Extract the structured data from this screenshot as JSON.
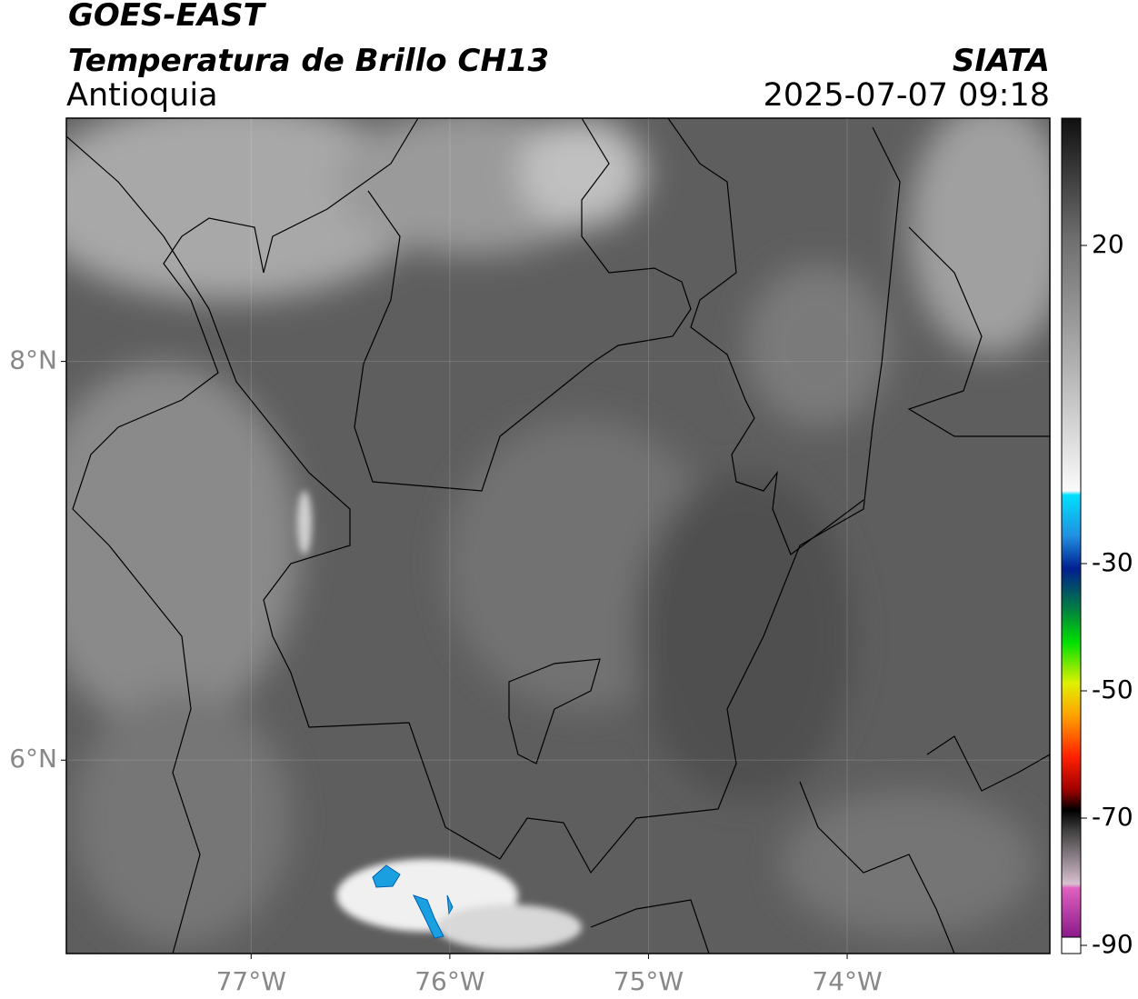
{
  "header": {
    "satellite": "GOES-EAST",
    "product": "Temperatura de Brillo CH13",
    "region": "Antioquia",
    "source": "SIATA",
    "datetime": "2025-07-07 09:18"
  },
  "map": {
    "xlim": [
      -77.93,
      -72.98
    ],
    "ylim": [
      5.03,
      9.22
    ],
    "xticks": [
      {
        "value": -77,
        "label": "77°W"
      },
      {
        "value": -76,
        "label": "76°W"
      },
      {
        "value": -75,
        "label": "75°W"
      },
      {
        "value": -74,
        "label": "74°W"
      }
    ],
    "yticks": [
      {
        "value": 8,
        "label": "8°N"
      },
      {
        "value": 6,
        "label": "6°N"
      }
    ],
    "grid": true
  },
  "colorbar": {
    "lim": [
      -90,
      40
    ],
    "ticks": [
      20,
      -30,
      -50,
      -70,
      -90
    ]
  }
}
